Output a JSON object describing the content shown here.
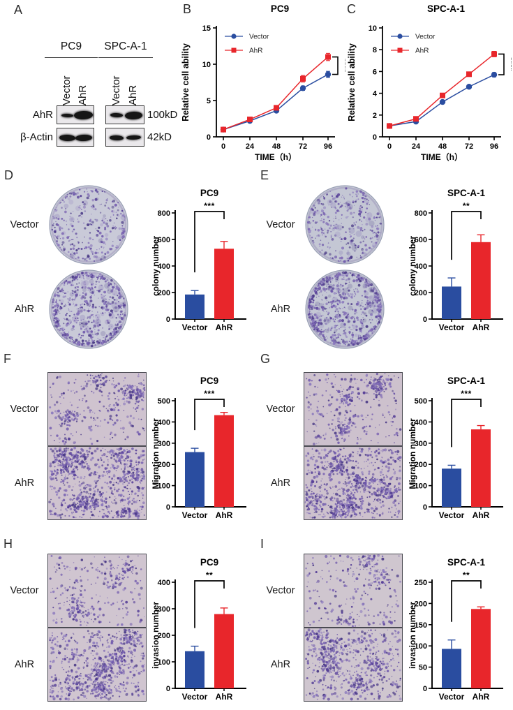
{
  "figure": {
    "panel_labels": [
      "A",
      "B",
      "C",
      "D",
      "E",
      "F",
      "G",
      "H",
      "I"
    ]
  },
  "western": {
    "cell_lines": [
      "PC9",
      "SPC-A-1"
    ],
    "lane_labels": [
      "Vector",
      "AhR",
      "Vector",
      "AhR"
    ],
    "rows": [
      {
        "protein": "AhR",
        "mw": "100kD",
        "bands": [
          [
            17,
            5
          ],
          [
            27,
            12
          ],
          [
            18,
            6
          ],
          [
            25,
            11
          ]
        ]
      },
      {
        "protein": "β-Actin",
        "mw": "42kD",
        "bands": [
          [
            23,
            9
          ],
          [
            24,
            9
          ],
          [
            20,
            7
          ],
          [
            21,
            6
          ]
        ]
      }
    ]
  },
  "chart_data": [
    {
      "panel": "B",
      "type": "line",
      "title": "PC9",
      "xlabel": "TIME（h）",
      "ylabel": "Relative cell ability",
      "x": [
        0,
        24,
        48,
        72,
        96
      ],
      "ylim": [
        0,
        15
      ],
      "yticks": [
        0,
        5,
        10,
        15
      ],
      "significance": "****",
      "legend_position": "top-left",
      "series": [
        {
          "name": "Vector",
          "marker": "circle",
          "color": "#2a4da0",
          "values": [
            1.0,
            2.2,
            3.6,
            6.7,
            8.6
          ],
          "errors": [
            0.06,
            0.12,
            0.18,
            0.3,
            0.42
          ]
        },
        {
          "name": "AhR",
          "marker": "square",
          "color": "#e8262b",
          "values": [
            1.0,
            2.4,
            4.0,
            8.0,
            11.0
          ],
          "errors": [
            0.06,
            0.12,
            0.2,
            0.45,
            0.5
          ]
        }
      ]
    },
    {
      "panel": "C",
      "type": "line",
      "title": "SPC-A-1",
      "xlabel": "TIME（h）",
      "ylabel": "Relative cell ability",
      "x": [
        0,
        24,
        48,
        72,
        96
      ],
      "ylim": [
        0,
        10
      ],
      "yticks": [
        0,
        2,
        4,
        6,
        8,
        10
      ],
      "significance": "****",
      "legend_position": "top-left",
      "series": [
        {
          "name": "Vector",
          "marker": "circle",
          "color": "#2a4da0",
          "values": [
            1.0,
            1.4,
            3.2,
            4.6,
            5.7
          ],
          "errors": [
            0.05,
            0.08,
            0.12,
            0.15,
            0.2
          ]
        },
        {
          "name": "AhR",
          "marker": "square",
          "color": "#e8262b",
          "values": [
            1.0,
            1.65,
            3.8,
            5.75,
            7.6
          ],
          "errors": [
            0.05,
            0.08,
            0.15,
            0.2,
            0.25
          ]
        }
      ]
    },
    {
      "panel": "D",
      "type": "bar",
      "title": "PC9",
      "ylabel": "colony number",
      "categories": [
        "Vector",
        "AhR"
      ],
      "values": [
        185,
        530
      ],
      "errors": [
        30,
        55
      ],
      "ylim": [
        0,
        800
      ],
      "yticks": [
        0,
        200,
        400,
        600,
        800
      ],
      "significance": "***",
      "bar_colors": [
        "#2a4da0",
        "#e8262b"
      ]
    },
    {
      "panel": "E",
      "type": "bar",
      "title": "SPC-A-1",
      "ylabel": "colony number",
      "categories": [
        "Vector",
        "AhR"
      ],
      "values": [
        245,
        580
      ],
      "errors": [
        65,
        55
      ],
      "ylim": [
        0,
        800
      ],
      "yticks": [
        0,
        200,
        400,
        600,
        800
      ],
      "significance": "**",
      "bar_colors": [
        "#2a4da0",
        "#e8262b"
      ]
    },
    {
      "panel": "F",
      "type": "bar",
      "title": "PC9",
      "ylabel": "Migration number",
      "categories": [
        "Vector",
        "AhR"
      ],
      "values": [
        258,
        432
      ],
      "errors": [
        18,
        13
      ],
      "ylim": [
        0,
        500
      ],
      "yticks": [
        0,
        100,
        200,
        300,
        400,
        500
      ],
      "significance": "***",
      "bar_colors": [
        "#2a4da0",
        "#e8262b"
      ]
    },
    {
      "panel": "G",
      "type": "bar",
      "title": "SPC-A-1",
      "ylabel": "Migration number",
      "categories": [
        "Vector",
        "AhR"
      ],
      "values": [
        180,
        365
      ],
      "errors": [
        16,
        18
      ],
      "ylim": [
        0,
        500
      ],
      "yticks": [
        0,
        100,
        200,
        300,
        400,
        500
      ],
      "significance": "***",
      "bar_colors": [
        "#2a4da0",
        "#e8262b"
      ]
    },
    {
      "panel": "H",
      "type": "bar",
      "title": "PC9",
      "ylabel": "invasion number",
      "categories": [
        "Vector",
        "AhR"
      ],
      "values": [
        140,
        280
      ],
      "errors": [
        19,
        23
      ],
      "ylim": [
        0,
        400
      ],
      "yticks": [
        0,
        100,
        200,
        300,
        400
      ],
      "significance": "**",
      "bar_colors": [
        "#2a4da0",
        "#e8262b"
      ]
    },
    {
      "panel": "I",
      "type": "bar",
      "title": "SPC-A-1",
      "ylabel": "invasion number",
      "categories": [
        "Vector",
        "AhR"
      ],
      "values": [
        93,
        187
      ],
      "errors": [
        21,
        5
      ],
      "ylim": [
        0,
        250
      ],
      "yticks": [
        0,
        50,
        100,
        150,
        200,
        250
      ],
      "significance": "**",
      "bar_colors": [
        "#2a4da0",
        "#e8262b"
      ]
    }
  ],
  "micrographs": [
    {
      "panel": "D",
      "kind": "plate",
      "bg": "#c9cad8",
      "rows": [
        {
          "label": "Vector",
          "dots": 300,
          "edge": 0.22
        },
        {
          "label": "AhR",
          "dots": 680,
          "edge": 0.36
        }
      ]
    },
    {
      "panel": "E",
      "kind": "plate",
      "bg": "#c4c7d4",
      "rows": [
        {
          "label": "Vector",
          "dots": 330,
          "edge": 0.12
        },
        {
          "label": "AhR",
          "dots": 760,
          "edge": 0.4
        }
      ]
    },
    {
      "panel": "F",
      "kind": "field",
      "bg": "#cfc3cf",
      "rows": [
        {
          "label": "Vector",
          "dots": 430
        },
        {
          "label": "AhR",
          "dots": 1000
        }
      ]
    },
    {
      "panel": "G",
      "kind": "field",
      "bg": "#cdc1cd",
      "rows": [
        {
          "label": "Vector",
          "dots": 420
        },
        {
          "label": "AhR",
          "dots": 950
        }
      ]
    },
    {
      "panel": "H",
      "kind": "field",
      "bg": "#d0c5d0",
      "rows": [
        {
          "label": "Vector",
          "dots": 340
        },
        {
          "label": "AhR",
          "dots": 800
        }
      ]
    },
    {
      "panel": "I",
      "kind": "field",
      "bg": "#cfc6cf",
      "rows": [
        {
          "label": "Vector",
          "dots": 310
        },
        {
          "label": "AhR",
          "dots": 720
        }
      ]
    }
  ],
  "colors": {
    "vector_blue": "#2a4da0",
    "ahr_red": "#e8262b",
    "axis_black": "#000000",
    "dot_palette": [
      "#6f59ab",
      "#563f97",
      "#8a78bd",
      "#4a3a86",
      "#7b64b2"
    ]
  }
}
